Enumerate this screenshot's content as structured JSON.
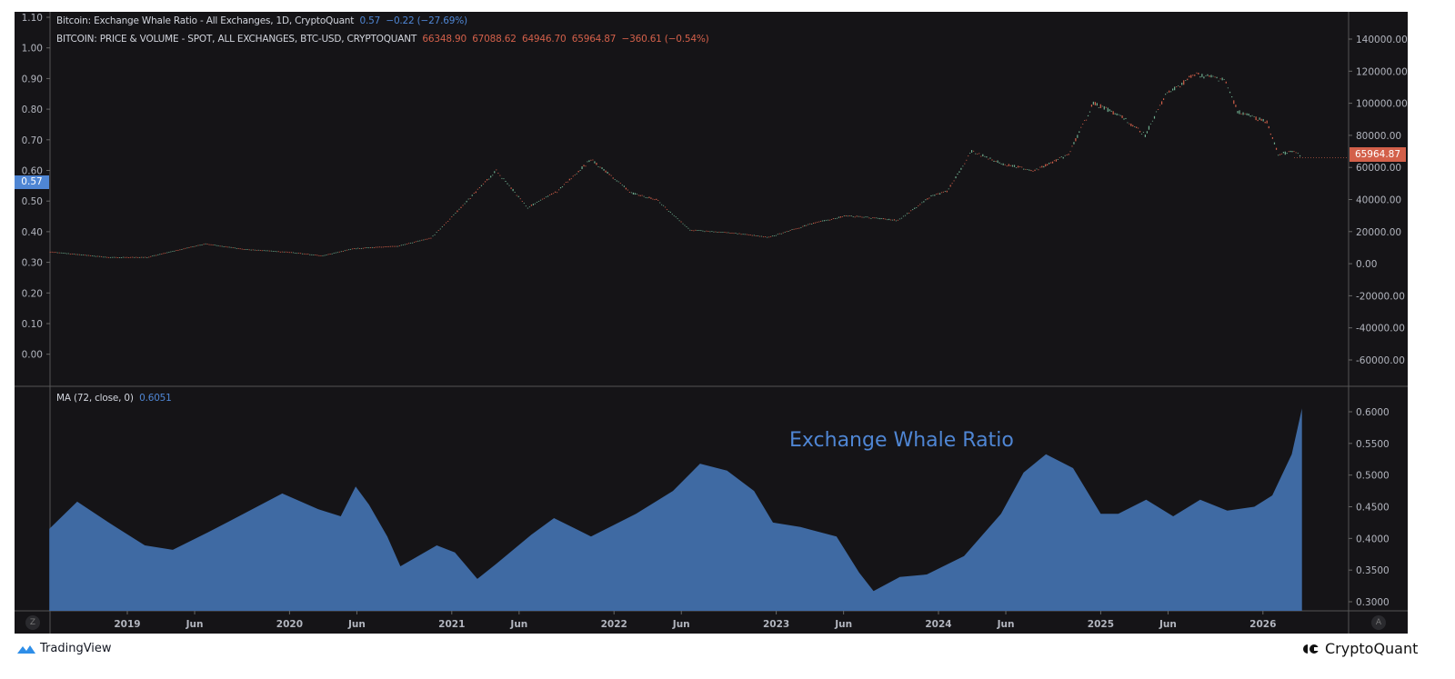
{
  "legend": {
    "line1_name": "Bitcoin: Exchange Whale Ratio - All Exchanges, 1D, CryptoQuant",
    "line1_value": "0.57",
    "line1_change": "−0.22 (−27.69%)",
    "line2_name": "BITCOIN: PRICE & VOLUME - SPOT, ALL EXCHANGES, BTC-USD, CRYPTOQUANT",
    "line2_ohlc": "66348.90  67088.62  64946.70  65964.87  −360.61 (−0.54%)",
    "ma_label": "MA (72, close, 0)",
    "ma_value": "0.6051"
  },
  "badges": {
    "left": "0.57",
    "right": "65964.87"
  },
  "annotation": "Exchange Whale Ratio",
  "footer": {
    "left_brand": "TradingView",
    "right_brand": "CryptoQuant"
  },
  "buttons": {
    "left": "Z",
    "right": "A"
  },
  "colors": {
    "ratio": "#4f86d4",
    "price_up": "#6fae8f",
    "price_down": "#d3604a",
    "area": "#3f6aa3"
  },
  "chart_data": [
    {
      "type": "line",
      "title": "",
      "left_axis_ticks": [
        "1.10",
        "1.00",
        "0.90",
        "0.80",
        "0.70",
        "0.60",
        "0.50",
        "0.40",
        "0.30",
        "0.20",
        "0.10",
        "0.00"
      ],
      "right_axis_ticks": [
        "140000.00",
        "120000.00",
        "100000.00",
        "80000.00",
        "60000.00",
        "40000.00",
        "20000.00",
        "0.00",
        "-20000.00",
        "-40000.00",
        "-60000.00"
      ],
      "ylim_right": [
        -70000,
        150000
      ],
      "series": [
        {
          "name": "BITCOIN: PRICE & VOLUME - SPOT, ALL EXCHANGES, BTC-USD, CRYPTOQUANT",
          "style": "candles",
          "points": [
            [
              "2018-07-10",
              7400
            ],
            [
              "2018-11-20",
              4000
            ],
            [
              "2019-02-15",
              4000
            ],
            [
              "2019-06-25",
              12500
            ],
            [
              "2019-09-20",
              9000
            ],
            [
              "2020-01-01",
              7200
            ],
            [
              "2020-03-15",
              5000
            ],
            [
              "2020-05-25",
              9500
            ],
            [
              "2020-09-01",
              11000
            ],
            [
              "2020-11-15",
              16000
            ],
            [
              "2021-01-01",
              29000
            ],
            [
              "2021-04-10",
              58000
            ],
            [
              "2021-06-20",
              35000
            ],
            [
              "2021-08-25",
              45000
            ],
            [
              "2021-11-10",
              65000
            ],
            [
              "2022-02-10",
              44000
            ],
            [
              "2022-04-05",
              40000
            ],
            [
              "2022-06-20",
              21000
            ],
            [
              "2022-10-01",
              19000
            ],
            [
              "2022-12-15",
              16500
            ],
            [
              "2023-03-20",
              25000
            ],
            [
              "2023-06-10",
              30000
            ],
            [
              "2023-10-01",
              27000
            ],
            [
              "2023-12-15",
              42000
            ],
            [
              "2024-01-20",
              45000
            ],
            [
              "2024-03-15",
              70000
            ],
            [
              "2024-05-25",
              62000
            ],
            [
              "2024-08-05",
              58000
            ],
            [
              "2024-10-20",
              68000
            ],
            [
              "2024-12-15",
              100000
            ],
            [
              "2025-02-15",
              92000
            ],
            [
              "2025-04-10",
              80000
            ],
            [
              "2025-05-25",
              105000
            ],
            [
              "2025-07-30",
              118000
            ],
            [
              "2025-10-05",
              115000
            ],
            [
              "2025-11-05",
              95000
            ],
            [
              "2026-01-10",
              88000
            ],
            [
              "2026-02-05",
              68000
            ],
            [
              "2026-03-10",
              70000
            ],
            [
              "2026-03-28",
              65964.87
            ]
          ]
        }
      ]
    },
    {
      "type": "area",
      "title": "",
      "y_axis_ticks": [
        "0.6000",
        "0.5500",
        "0.5000",
        "0.4500",
        "0.4000",
        "0.3500",
        "0.3000"
      ],
      "ylim": [
        0.295,
        0.615
      ],
      "x_axis_ticks": [
        "2019",
        "Jun",
        "2020",
        "Jun",
        "2021",
        "Jun",
        "2022",
        "Jun",
        "2023",
        "Jun",
        "2024",
        "Jun",
        "2025",
        "Jun",
        "2026"
      ],
      "series": [
        {
          "name": "MA (72, close, 0)",
          "points": [
            [
              "2018-07-08",
              0.415
            ],
            [
              "2018-09-10",
              0.458
            ],
            [
              "2018-11-20",
              0.425
            ],
            [
              "2019-02-10",
              0.389
            ],
            [
              "2019-04-12",
              0.382
            ],
            [
              "2019-07-01",
              0.41
            ],
            [
              "2019-09-25",
              0.441
            ],
            [
              "2019-12-15",
              0.471
            ],
            [
              "2020-03-05",
              0.446
            ],
            [
              "2020-04-25",
              0.435
            ],
            [
              "2020-05-28",
              0.482
            ],
            [
              "2020-06-28",
              0.453
            ],
            [
              "2020-08-08",
              0.403
            ],
            [
              "2020-09-07",
              0.356
            ],
            [
              "2020-11-28",
              0.389
            ],
            [
              "2021-01-08",
              0.378
            ],
            [
              "2021-02-28",
              0.336
            ],
            [
              "2021-04-10",
              0.36
            ],
            [
              "2021-06-28",
              0.406
            ],
            [
              "2021-08-18",
              0.432
            ],
            [
              "2021-11-10",
              0.403
            ],
            [
              "2022-02-20",
              0.439
            ],
            [
              "2022-05-12",
              0.475
            ],
            [
              "2022-07-12",
              0.518
            ],
            [
              "2022-09-12",
              0.507
            ],
            [
              "2022-11-12",
              0.475
            ],
            [
              "2022-12-24",
              0.425
            ],
            [
              "2023-02-25",
              0.418
            ],
            [
              "2023-05-15",
              0.403
            ],
            [
              "2023-07-05",
              0.346
            ],
            [
              "2023-08-07",
              0.317
            ],
            [
              "2023-10-05",
              0.339
            ],
            [
              "2023-12-05",
              0.343
            ],
            [
              "2024-02-28",
              0.372
            ],
            [
              "2024-05-20",
              0.439
            ],
            [
              "2024-07-10",
              0.504
            ],
            [
              "2024-08-30",
              0.533
            ],
            [
              "2024-10-30",
              0.511
            ],
            [
              "2025-01-01",
              0.439
            ],
            [
              "2025-02-10",
              0.439
            ],
            [
              "2025-04-12",
              0.461
            ],
            [
              "2025-06-12",
              0.435
            ],
            [
              "2025-08-12",
              0.461
            ],
            [
              "2025-10-12",
              0.444
            ],
            [
              "2025-12-12",
              0.45
            ],
            [
              "2026-01-22",
              0.468
            ],
            [
              "2026-03-05",
              0.533
            ],
            [
              "2026-03-28",
              0.6051
            ]
          ]
        }
      ]
    }
  ]
}
